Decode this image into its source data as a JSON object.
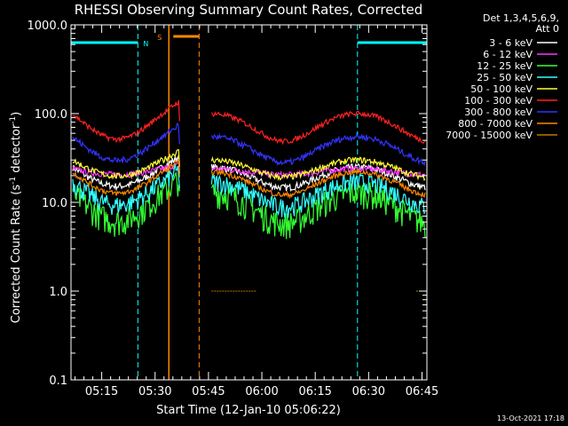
{
  "chart_data": {
    "type": "line",
    "title": "RHESSI Observing Summary Count Rates, Corrected",
    "xlabel": "Start Time (12-Jan-10 05:06:22)",
    "ylabel_main": "Corrected Count Rate (s",
    "ylabel_sup": "-1",
    "ylabel_mid": " detector",
    "ylabel_end": ")",
    "y_scale": "log",
    "ylim": [
      0.1,
      1000
    ],
    "x_minutes_range": [
      0,
      100
    ],
    "x_ticks": [
      {
        "label": "05:15",
        "minute": 8.63
      },
      {
        "label": "05:30",
        "minute": 23.63
      },
      {
        "label": "05:45",
        "minute": 38.63
      },
      {
        "label": "06:00",
        "minute": 53.63
      },
      {
        "label": "06:15",
        "minute": 68.63
      },
      {
        "label": "06:30",
        "minute": 83.63
      },
      {
        "label": "06:45",
        "minute": 98.63
      }
    ],
    "y_ticks": [
      {
        "label": "1000.0",
        "value": 1000
      },
      {
        "label": "100.0",
        "value": 100
      },
      {
        "label": "10.0",
        "value": 10
      },
      {
        "label": "1.0",
        "value": 1
      },
      {
        "label": "0.1",
        "value": 0.1
      }
    ],
    "legend_header": [
      "Det 1,3,4,5,6,9,",
      "Att 0"
    ],
    "legend_position": "outside-right",
    "data_gap_minutes": [
      30.5,
      39.5
    ],
    "night_intervals": [
      [
        0,
        18.8
      ],
      [
        80.5,
        100
      ]
    ],
    "night_label": "N",
    "saa_interval": [
      27.5,
      36.0
    ],
    "saa_label": "S",
    "series": [
      {
        "name": "3 - 6 keV",
        "color": "#ffffff",
        "base": 13.5,
        "peak": 25,
        "noise": 0.09
      },
      {
        "name": "6 - 12 keV",
        "color": "#ff33ff",
        "base": 20,
        "peak": 24,
        "noise": 0.08
      },
      {
        "name": "12 - 25 keV",
        "color": "#33ff33",
        "base": 5,
        "peak": 13,
        "noise": 0.35
      },
      {
        "name": "25 - 50 keV",
        "color": "#33ffff",
        "base": 8,
        "peak": 17,
        "noise": 0.25
      },
      {
        "name": "50 - 100 keV",
        "color": "#ffff33",
        "base": 18,
        "peak": 30,
        "noise": 0.08
      },
      {
        "name": "100 - 300 keV",
        "color": "#ff2222",
        "base": 43,
        "peak": 100,
        "noise": 0.07
      },
      {
        "name": "300 - 800 keV",
        "color": "#3333ff",
        "base": 25,
        "peak": 55,
        "noise": 0.08
      },
      {
        "name": "800 - 7000 keV",
        "color": "#ff8800",
        "base": 11,
        "peak": 22,
        "noise": 0.07
      },
      {
        "name": "7000 - 15000 keV",
        "color": "#bb7700",
        "base": 1.0,
        "peak": 1.0,
        "noise": 0.0
      }
    ],
    "footer_date": "13-Oct-2021 17:18"
  }
}
